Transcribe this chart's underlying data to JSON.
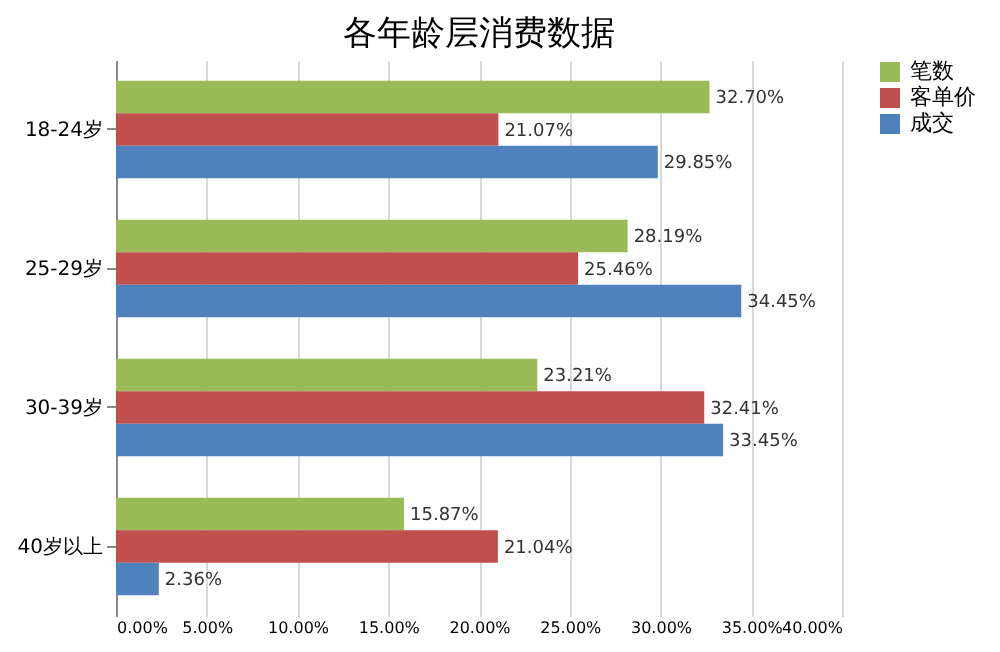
{
  "chart_data": {
    "type": "bar",
    "orientation": "horizontal",
    "title": "各年龄层消费数据",
    "categories": [
      "18-24岁",
      "25-29岁",
      "30-39岁",
      "40岁以上"
    ],
    "series": [
      {
        "name": "笔数",
        "color": "#9bbb59",
        "values": [
          32.7,
          28.19,
          23.21,
          15.87
        ],
        "value_labels": [
          "32.70%",
          "28.19%",
          "23.21%",
          "15.87%"
        ]
      },
      {
        "name": "客单价",
        "color": "#c0504d",
        "values": [
          21.07,
          25.46,
          32.41,
          21.04
        ],
        "value_labels": [
          "21.07%",
          "25.46%",
          "32.41%",
          "21.04%"
        ]
      },
      {
        "name": "成交",
        "color": "#4f81bd",
        "values": [
          29.85,
          34.45,
          33.45,
          2.36
        ],
        "value_labels": [
          "29.85%",
          "34.45%",
          "33.45%",
          "2.36%"
        ]
      }
    ],
    "xlim": [
      0,
      40
    ],
    "xticks": [
      {
        "value": 0,
        "label": "0.00%"
      },
      {
        "value": 5,
        "label": "5.00%"
      },
      {
        "value": 10,
        "label": "10.00%"
      },
      {
        "value": 15,
        "label": "15.00%"
      },
      {
        "value": 20,
        "label": "20.00%"
      },
      {
        "value": 25,
        "label": "25.00%"
      },
      {
        "value": 30,
        "label": "30.00%"
      },
      {
        "value": 35,
        "label": "35.00%"
      },
      {
        "value": 40,
        "label": "40.00%"
      }
    ],
    "grid": "x",
    "legend": "right"
  }
}
